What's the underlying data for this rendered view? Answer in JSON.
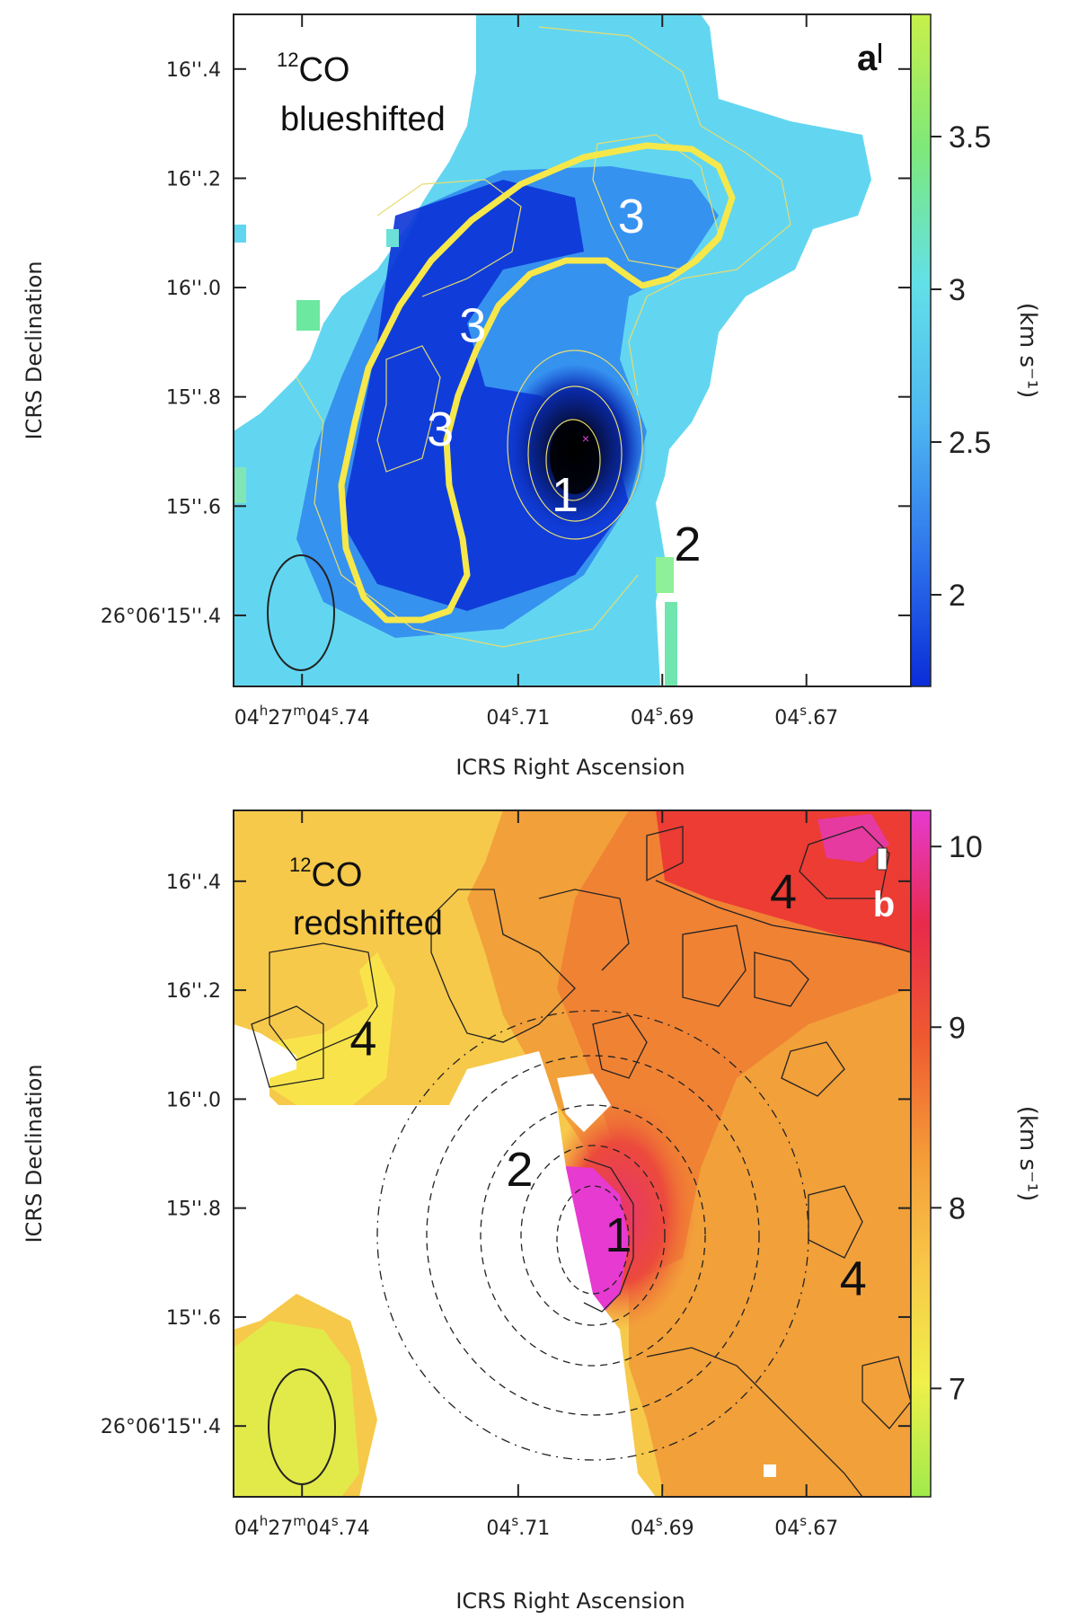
{
  "chart_data": [
    {
      "type": "heatmap",
      "panel_letter": "a",
      "title": {
        "sup": "12",
        "main": "CO",
        "line2": "blueshifted"
      },
      "xlabel": "ICRS Right Ascension",
      "ylabel": "ICRS Declination",
      "x_ticks": [
        {
          "h": "04",
          "m": "27",
          "s": "04",
          "frac": ".74",
          "full": true,
          "value": 4.74
        },
        {
          "s": "04",
          "frac": ".71",
          "value": 4.71
        },
        {
          "s": "04",
          "frac": ".69",
          "value": 4.69
        },
        {
          "s": "04",
          "frac": ".67",
          "value": 4.67
        }
      ],
      "y_ticks": [
        {
          "label": "16''.4",
          "value": 16.4
        },
        {
          "label": "16''.2",
          "value": 16.2
        },
        {
          "label": "16''.0",
          "value": 16.0
        },
        {
          "label": "15''.8",
          "value": 15.8
        },
        {
          "label": "15''.6",
          "value": 15.6
        },
        {
          "label": "26°06'15''.4",
          "deg": "26",
          "rest": "06'15''.4",
          "value": 15.4
        }
      ],
      "xlim": [
        4.7495,
        4.6555
      ],
      "ylim": [
        15.27,
        16.5
      ],
      "colorbar": {
        "unit": "(km s⁻¹)",
        "ticks": [
          {
            "label": "3.5",
            "value": 3.5
          },
          {
            "label": "3",
            "value": 3.0
          },
          {
            "label": "2.5",
            "value": 2.5
          },
          {
            "label": "2",
            "value": 2.0
          }
        ],
        "range": [
          1.7,
          3.9
        ],
        "colors": [
          "#0a2cd8",
          "#2f76ec",
          "#4fb8f0",
          "#62e0e8",
          "#7ee87a",
          "#c8f04a"
        ]
      },
      "region_labels": [
        {
          "text": "1",
          "ra": 4.7035,
          "dec": 15.62,
          "color": "#ffffff"
        },
        {
          "text": "2",
          "ra": 4.6865,
          "dec": 15.53,
          "color": "#111111"
        },
        {
          "text": "3",
          "ra": 4.7163,
          "dec": 15.93,
          "color": "#ffffff"
        },
        {
          "text": "3",
          "ra": 4.6943,
          "dec": 16.13,
          "color": "#ffffff"
        },
        {
          "text": "3",
          "ra": 4.7208,
          "dec": 15.74,
          "color": "#ffffff"
        }
      ],
      "peak_marker": "×",
      "colors": {
        "curve": "#f6e84a",
        "contour": "#e6dc70"
      }
    },
    {
      "type": "heatmap",
      "panel_letter": "b",
      "title": {
        "sup": "12",
        "main": "CO",
        "line2": "redshifted"
      },
      "xlabel": "ICRS Right Ascension",
      "ylabel": "ICRS Declination",
      "x_ticks": [
        {
          "h": "04",
          "m": "27",
          "s": "04",
          "frac": ".74",
          "full": true,
          "value": 4.74
        },
        {
          "s": "04",
          "frac": ".71",
          "value": 4.71
        },
        {
          "s": "04",
          "frac": ".69",
          "value": 4.69
        },
        {
          "s": "04",
          "frac": ".67",
          "value": 4.67
        }
      ],
      "y_ticks": [
        {
          "label": "16''.4",
          "value": 16.4
        },
        {
          "label": "16''.2",
          "value": 16.2
        },
        {
          "label": "16''.0",
          "value": 16.0
        },
        {
          "label": "15''.8",
          "value": 15.8
        },
        {
          "label": "15''.6",
          "value": 15.6
        },
        {
          "label": "26°06'15''.4",
          "deg": "26",
          "rest": "06'15''.4",
          "value": 15.4
        }
      ],
      "xlim": [
        4.7495,
        4.6555
      ],
      "ylim": [
        15.27,
        16.53
      ],
      "colorbar": {
        "unit": "(km s⁻¹)",
        "ticks": [
          {
            "label": "10",
            "value": 10
          },
          {
            "label": "9",
            "value": 9
          },
          {
            "label": "8",
            "value": 8
          },
          {
            "label": "7",
            "value": 7
          }
        ],
        "range": [
          6.4,
          10.2
        ],
        "colors": [
          "#a0ea4c",
          "#f0f04a",
          "#f8c848",
          "#f49a38",
          "#ee5a30",
          "#e82a4a",
          "#e63ad0"
        ]
      },
      "region_labels": [
        {
          "text": "1",
          "ra": 4.6961,
          "dec": 15.75,
          "color": "#111111"
        },
        {
          "text": "2",
          "ra": 4.7098,
          "dec": 15.87,
          "color": "#111111"
        },
        {
          "text": "4",
          "ra": 4.6732,
          "dec": 16.38,
          "color": "#111111"
        },
        {
          "text": "4",
          "ra": 4.7315,
          "dec": 16.11,
          "color": "#111111"
        },
        {
          "text": "4",
          "ra": 4.6635,
          "dec": 15.67,
          "color": "#111111"
        }
      ],
      "colors": {
        "contour": "#222222"
      }
    }
  ]
}
